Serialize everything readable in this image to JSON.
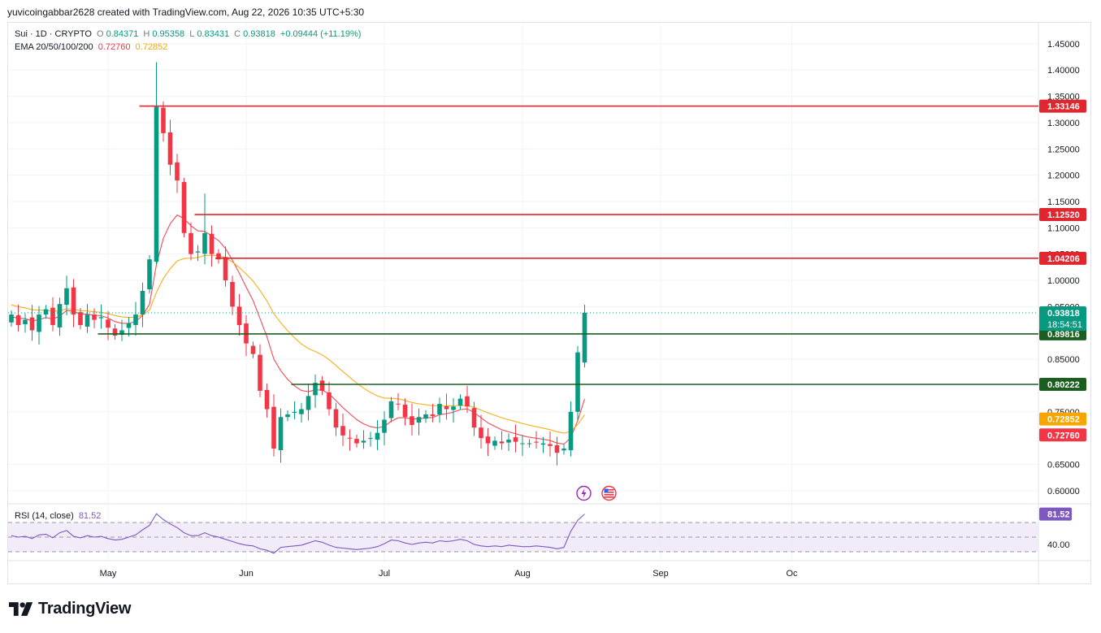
{
  "header": {
    "attribution": "yuvicoingabbar2628 created with TradingView.com, Aug 22, 2026 10:35 UTC+5:30"
  },
  "legend": {
    "symbol": "Sui · 1D · CRYPTO",
    "open_label": "O",
    "open": "0.84371",
    "high_label": "H",
    "high": "0.95358",
    "low_label": "L",
    "low": "0.83431",
    "close_label": "C",
    "close": "0.93818",
    "change": "+0.09444 (+11.19%)",
    "ema_label": "EMA 20/50/100/200",
    "ema_fast": "0.72760",
    "ema_slow": "0.72852",
    "rsi_label": "RSI (14, close)",
    "rsi_value": "81.52"
  },
  "footer": {
    "brand": "TradingView"
  },
  "colors": {
    "up": "#089981",
    "down": "#f23645",
    "ema_fast": "#f23645",
    "ema_slow": "#f7a600",
    "resistance": "#e0262f",
    "support": "#1b5e20",
    "rsi_line": "#7e57c2",
    "rsi_band": "#ede7f6"
  },
  "chart_data": {
    "type": "candlestick",
    "y_ticks": [
      "1.45000",
      "1.40000",
      "1.35000",
      "1.30000",
      "1.25000",
      "1.20000",
      "1.15000",
      "1.10000",
      "1.05000",
      "1.00000",
      "0.95000",
      "0.85000",
      "0.75000",
      "0.65000",
      "0.60000"
    ],
    "ylim": [
      0.575,
      1.49
    ],
    "x_ticks": [
      {
        "label": "May",
        "index": 14
      },
      {
        "label": "Jun",
        "index": 34
      },
      {
        "label": "Jul",
        "index": 54
      },
      {
        "label": "Aug",
        "index": 74
      },
      {
        "label": "Sep",
        "index": 94
      },
      {
        "label": "Oc",
        "index": 113
      }
    ],
    "levels": [
      {
        "value": 1.33146,
        "label": "1.33146",
        "kind": "resistance",
        "from_index": 19
      },
      {
        "value": 1.1252,
        "label": "1.12520",
        "kind": "resistance",
        "from_index": 27
      },
      {
        "value": 1.04206,
        "label": "1.04206",
        "kind": "resistance",
        "from_index": 30
      },
      {
        "value": 0.89816,
        "label": "0.89816",
        "kind": "support",
        "from_index": 13
      },
      {
        "value": 0.80222,
        "label": "0.80222",
        "kind": "support",
        "from_index": 41
      }
    ],
    "price_tags": [
      {
        "value": 0.93818,
        "label": "0.93818",
        "sublabel": "18:54:51",
        "color": "#089981"
      },
      {
        "value": 0.72852,
        "label": "0.72852",
        "color": "#f7a600"
      },
      {
        "value": 0.7276,
        "label": "0.72760",
        "color": "#f23645"
      }
    ],
    "current_price": 0.93818,
    "closes": [
      0.935,
      0.915,
      0.925,
      0.905,
      0.935,
      0.945,
      0.915,
      0.955,
      0.985,
      0.935,
      0.915,
      0.935,
      0.925,
      0.93,
      0.91,
      0.895,
      0.905,
      0.918,
      0.935,
      0.98,
      1.04,
      1.33,
      1.28,
      1.22,
      1.19,
      1.09,
      1.05,
      1.055,
      1.09,
      1.05,
      1.04,
      1.0,
      0.95,
      0.915,
      0.88,
      0.86,
      0.79,
      0.755,
      0.68,
      0.74,
      0.745,
      0.75,
      0.755,
      0.78,
      0.805,
      0.79,
      0.755,
      0.72,
      0.705,
      0.7,
      0.69,
      0.695,
      0.7,
      0.71,
      0.735,
      0.77,
      0.765,
      0.74,
      0.725,
      0.74,
      0.745,
      0.742,
      0.765,
      0.755,
      0.76,
      0.775,
      0.76,
      0.72,
      0.7,
      0.69,
      0.695,
      0.69,
      0.697,
      0.693,
      0.69,
      0.69,
      0.692,
      0.69,
      0.685,
      0.672,
      0.68,
      0.75,
      0.863,
      0.93818
    ],
    "ema_fast_end": 0.7276,
    "ema_slow_end": 0.72852,
    "rsi": {
      "levels": [
        70,
        50,
        30
      ],
      "tick": "40.00",
      "current": 81.52,
      "current_label": "81.52",
      "values": [
        52,
        50,
        51,
        48,
        53,
        54,
        49,
        56,
        59,
        51,
        49,
        52,
        50,
        51,
        48,
        46,
        47,
        50,
        53,
        60,
        66,
        82,
        74,
        68,
        63,
        56,
        52,
        52,
        56,
        52,
        50,
        47,
        44,
        41,
        39,
        38,
        34,
        32,
        28,
        36,
        37,
        38,
        39,
        42,
        45,
        43,
        39,
        36,
        35,
        34,
        33,
        34,
        35,
        37,
        41,
        46,
        45,
        42,
        40,
        42,
        43,
        42,
        45,
        44,
        45,
        47,
        45,
        40,
        38,
        37,
        38,
        37,
        39,
        38,
        37,
        37,
        38,
        37,
        36,
        34,
        36,
        58,
        73,
        81.52
      ]
    }
  }
}
